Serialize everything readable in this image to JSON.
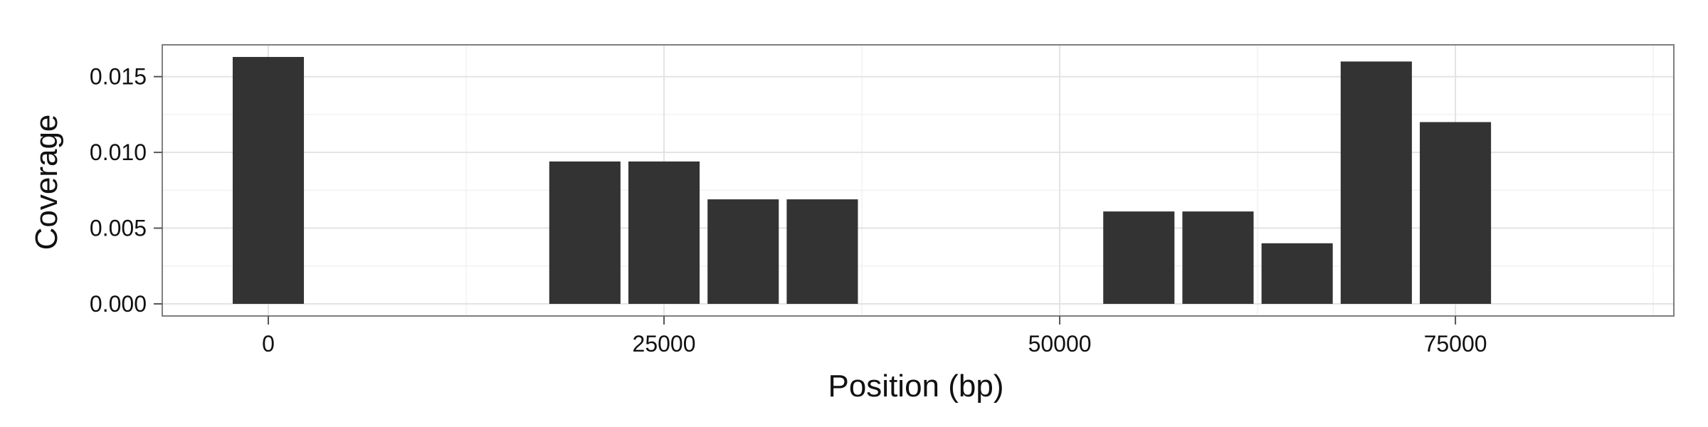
{
  "chart_data": {
    "type": "bar",
    "title": "",
    "xlabel": "Position (bp)",
    "ylabel": "Coverage",
    "xlim": [
      -6700,
      88800
    ],
    "ylim": [
      -0.0008,
      0.0171
    ],
    "bar_width": 4500,
    "grid": true,
    "legend": "none",
    "bar_color": "#333333",
    "x_ticks": [
      0,
      25000,
      50000,
      75000
    ],
    "x_tick_labels": [
      "0",
      "25000",
      "50000",
      "75000"
    ],
    "y_ticks": [
      0.0,
      0.005,
      0.01,
      0.015
    ],
    "y_tick_labels": [
      "0.000",
      "0.005",
      "0.010",
      "0.015"
    ],
    "bars": [
      {
        "x": 0,
        "y": 0.0163
      },
      {
        "x": 20000,
        "y": 0.0094
      },
      {
        "x": 25000,
        "y": 0.0094
      },
      {
        "x": 30000,
        "y": 0.0069
      },
      {
        "x": 35000,
        "y": 0.0069
      },
      {
        "x": 55000,
        "y": 0.0061
      },
      {
        "x": 60000,
        "y": 0.0061
      },
      {
        "x": 65000,
        "y": 0.004
      },
      {
        "x": 70000,
        "y": 0.016
      },
      {
        "x": 75000,
        "y": 0.012
      }
    ]
  }
}
